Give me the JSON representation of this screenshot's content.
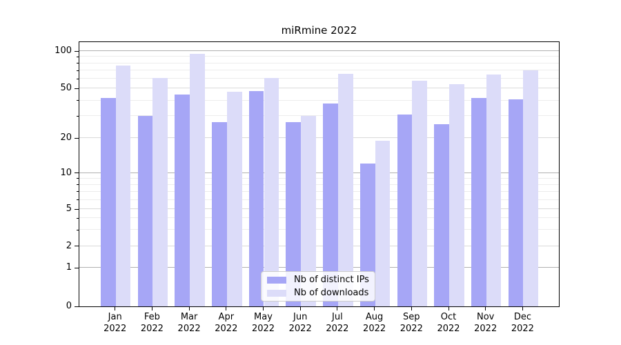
{
  "chart_data": {
    "type": "bar",
    "title": "miRmine 2022",
    "categories": [
      "Jan 2022",
      "Feb 2022",
      "Mar 2022",
      "Apr 2022",
      "May 2022",
      "Jun 2022",
      "Jul 2022",
      "Aug 2022",
      "Sep 2022",
      "Oct 2022",
      "Nov 2022",
      "Dec 2022"
    ],
    "series": [
      {
        "name": "Nb of distinct IPs",
        "color": "#a6a6f6",
        "values": [
          42,
          30,
          45,
          27,
          48,
          27,
          38,
          12,
          31,
          26,
          42,
          41
        ]
      },
      {
        "name": "Nb of downloads",
        "color": "#dcdcf9",
        "values": [
          77,
          61,
          95,
          47,
          61,
          30,
          66,
          19,
          58,
          54,
          65,
          70
        ]
      }
    ],
    "xlabel": "",
    "ylabel": "",
    "yscale": "symlog",
    "ylim": [
      0,
      113
    ],
    "grid": true,
    "legend_position": "lower center",
    "y_axis": {
      "ticks": [
        {
          "value": 0,
          "label": "0",
          "grid": "none"
        },
        {
          "value": 1,
          "label": "1",
          "grid": "strong"
        },
        {
          "value": 2,
          "label": "2",
          "grid": "mid"
        },
        {
          "value": 5,
          "label": "5",
          "grid": "mid"
        },
        {
          "value": 10,
          "label": "10",
          "grid": "strong"
        },
        {
          "value": 20,
          "label": "20",
          "grid": "mid"
        },
        {
          "value": 50,
          "label": "50",
          "grid": "mid"
        },
        {
          "value": 100,
          "label": "100",
          "grid": "strong"
        }
      ],
      "minor_grid_values": [
        3,
        4,
        6,
        7,
        8,
        9,
        30,
        40,
        60,
        70,
        80,
        90
      ]
    }
  },
  "colors": {
    "background": "#ffffff",
    "bar_distinct_ips": "#a6a6f6",
    "bar_downloads": "#dcdcf9",
    "grid_strong": "#b0b0b0",
    "grid_mid": "#d9d9d9",
    "grid_minor": "#ececec",
    "axis": "#000000",
    "text": "#000000",
    "legend_border": "#cccccc"
  }
}
